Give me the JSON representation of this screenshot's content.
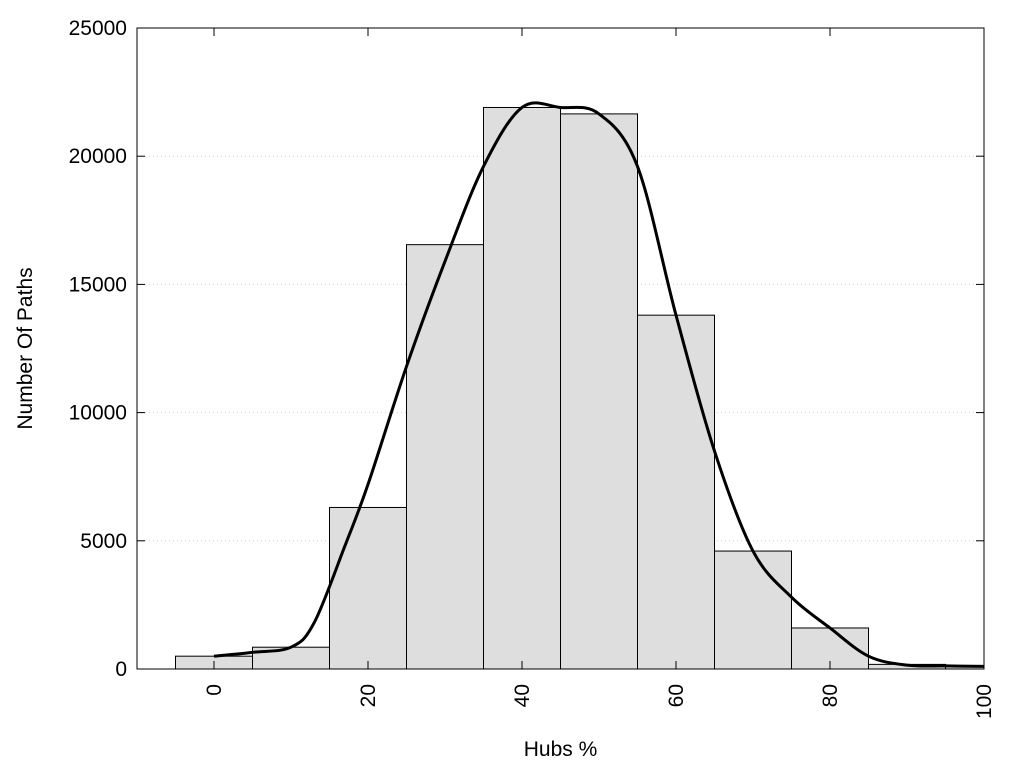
{
  "chart_data": {
    "type": "bar",
    "xlabel": "Hubs %",
    "ylabel": "Number Of Paths",
    "xlim": [
      -10,
      100
    ],
    "ylim": [
      0,
      25000
    ],
    "bin_width": 10,
    "x": [
      0,
      10,
      20,
      30,
      40,
      50,
      60,
      70,
      80,
      90,
      100
    ],
    "values": [
      500,
      850,
      6300,
      16550,
      21900,
      21650,
      13800,
      4600,
      1600,
      180,
      100
    ],
    "xticks": [
      0,
      20,
      40,
      60,
      80,
      100
    ],
    "yticks": [
      0,
      5000,
      10000,
      15000,
      20000,
      25000
    ],
    "grid": true,
    "bar_color": "#dedede",
    "curve": {
      "x": [
        0,
        5,
        10,
        13,
        17,
        20,
        25,
        30,
        35,
        40,
        45,
        50,
        55,
        60,
        65,
        70,
        75,
        80,
        85,
        90,
        95,
        100
      ],
      "y": [
        500,
        650,
        850,
        1800,
        4800,
        7200,
        11800,
        15900,
        19600,
        21900,
        21900,
        21650,
        19600,
        13800,
        8500,
        4600,
        2800,
        1600,
        500,
        150,
        120,
        100
      ]
    }
  }
}
